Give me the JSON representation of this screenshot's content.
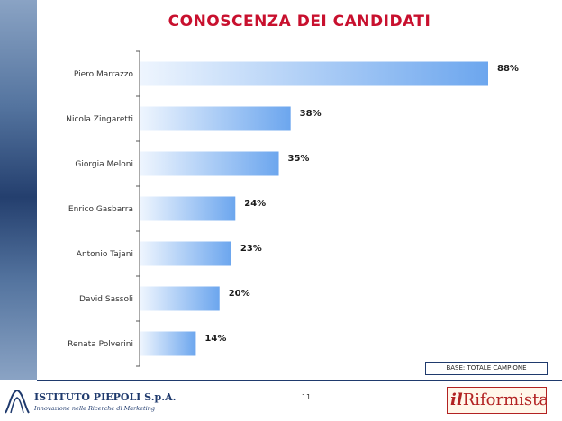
{
  "slide": {
    "title": "CONOSCENZA DEI CANDIDATI",
    "base_note": "BASE: TOTALE CAMPIONE",
    "page_number": "11"
  },
  "logos": {
    "piepoli": {
      "name": "ISTITUTO PIEPOLI S.p.A.",
      "tagline": "Innovazione nelle Ricerche di Marketing"
    },
    "riformista": {
      "prefix": "il",
      "name": "Riformista"
    }
  },
  "colors": {
    "title": "#c8102e",
    "bar_start": "#eef5fe",
    "bar_end": "#6ca6ee",
    "axis": "#555555",
    "navy": "#1f3a6d"
  },
  "chart_data": {
    "type": "bar",
    "orientation": "horizontal",
    "categories": [
      "Piero Marrazzo",
      "Nicola Zingaretti",
      "Giorgia Meloni",
      "Enrico Gasbarra",
      "Antonio Tajani",
      "David Sassoli",
      "Renata Polverini"
    ],
    "values": [
      88,
      38,
      35,
      24,
      23,
      20,
      14
    ],
    "value_labels": [
      "88%",
      "38%",
      "35%",
      "24%",
      "23%",
      "20%",
      "14%"
    ],
    "unit": "%",
    "xlim": [
      0,
      88
    ],
    "grid": false,
    "legend": "none"
  }
}
